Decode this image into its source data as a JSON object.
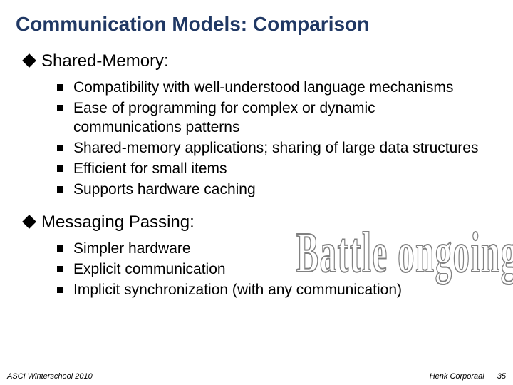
{
  "title": "Communication Models: Comparison",
  "title_color": "#203864",
  "sections": [
    {
      "label": "Shared-Memory:",
      "bullets": [
        "Compatibility with well-understood language mechanisms",
        "Ease of programming for complex or dynamic communications patterns",
        "Shared-memory applications; sharing of large data structures",
        "Efficient for small items",
        "Supports hardware caching"
      ]
    },
    {
      "label": "Messaging Passing:",
      "bullets": [
        "Simpler hardware",
        "Explicit communication",
        "Implicit synchronization (with any communication)"
      ]
    }
  ],
  "overlay_text": "Battle ongoing",
  "footer": {
    "left": "ASCI Winterschool 2010",
    "author": "Henk Corporaal",
    "page": "35"
  },
  "colors": {
    "background": "#ffffff",
    "text": "#000000",
    "bullet_square": "#000000",
    "diamond": "#000000",
    "overlay_stroke": "#808080"
  }
}
